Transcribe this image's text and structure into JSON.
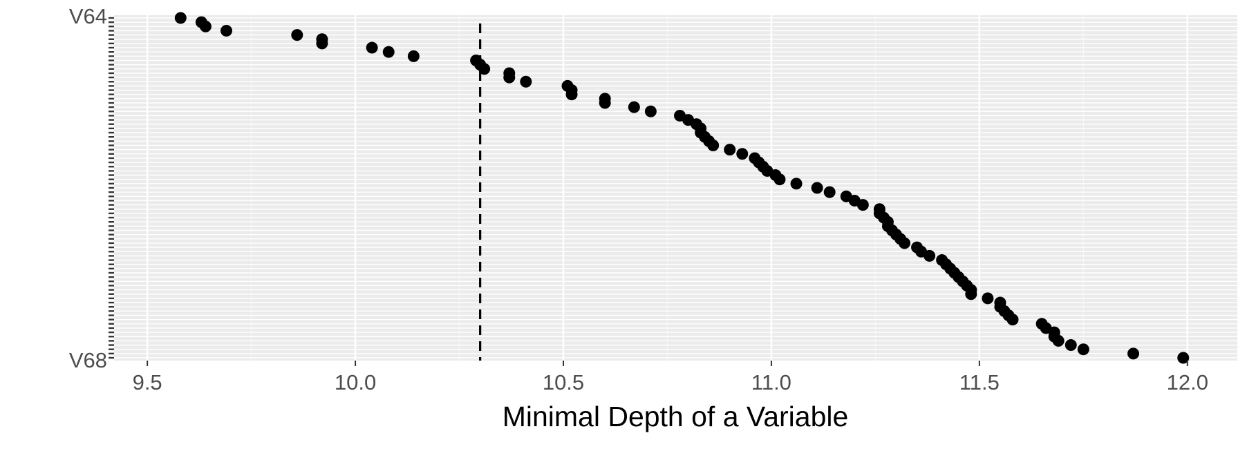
{
  "chart_data": {
    "type": "scatter",
    "title": "",
    "xlabel": "Minimal Depth of a Variable",
    "ylabel": "",
    "xlim": [
      9.42,
      12.12
    ],
    "x_ticks": [
      9.5,
      10.0,
      10.5,
      11.0,
      11.5,
      12.0
    ],
    "x_tick_labels": [
      "9.5",
      "10.0",
      "10.5",
      "11.0",
      "11.5",
      "12.0"
    ],
    "grid": true,
    "panel_background": "#ebebeb",
    "point_color": "#000000",
    "legend": "none",
    "threshold": {
      "x": 10.3,
      "style": "dashed",
      "color": "#000000"
    },
    "y_label_top": "V64",
    "y_label_bottom": "V68",
    "y_labels_overlapping": true,
    "values": [
      9.58,
      9.63,
      9.64,
      9.69,
      9.86,
      9.92,
      9.92,
      10.04,
      10.08,
      10.14,
      10.29,
      10.3,
      10.31,
      10.37,
      10.37,
      10.41,
      10.51,
      10.52,
      10.52,
      10.6,
      10.6,
      10.67,
      10.71,
      10.78,
      10.8,
      10.82,
      10.83,
      10.83,
      10.84,
      10.85,
      10.86,
      10.9,
      10.93,
      10.96,
      10.97,
      10.98,
      10.99,
      11.01,
      11.02,
      11.06,
      11.11,
      11.14,
      11.18,
      11.2,
      11.22,
      11.26,
      11.26,
      11.27,
      11.28,
      11.28,
      11.29,
      11.3,
      11.31,
      11.32,
      11.35,
      11.36,
      11.38,
      11.41,
      11.42,
      11.43,
      11.44,
      11.45,
      11.46,
      11.47,
      11.48,
      11.48,
      11.52,
      11.55,
      11.55,
      11.56,
      11.57,
      11.58,
      11.65,
      11.66,
      11.68,
      11.68,
      11.69,
      11.72,
      11.75,
      11.87,
      11.99
    ]
  }
}
